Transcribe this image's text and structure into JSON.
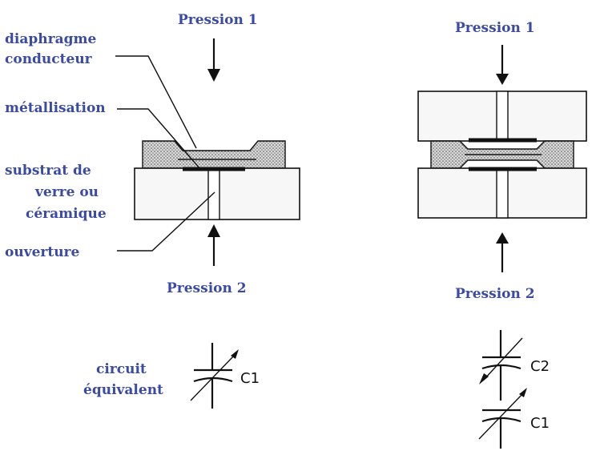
{
  "left": {
    "pressure_top": "Pression 1",
    "pressure_bottom": "Pression 2",
    "label_diaphragm_line1": "diaphragme",
    "label_diaphragm_line2": "conducteur",
    "label_metal": "métallisation",
    "label_substrate_line1": "substrat de",
    "label_substrate_line2": "verre ou",
    "label_substrate_line3": "céramique",
    "label_opening": "ouverture",
    "circuit_line1": "circuit",
    "circuit_line2": "équivalent",
    "capacitor": "C1"
  },
  "right": {
    "pressure_top": "Pression 1",
    "pressure_bottom": "Pression 2",
    "capacitor_top": "C2",
    "capacitor_bottom": "C1"
  }
}
